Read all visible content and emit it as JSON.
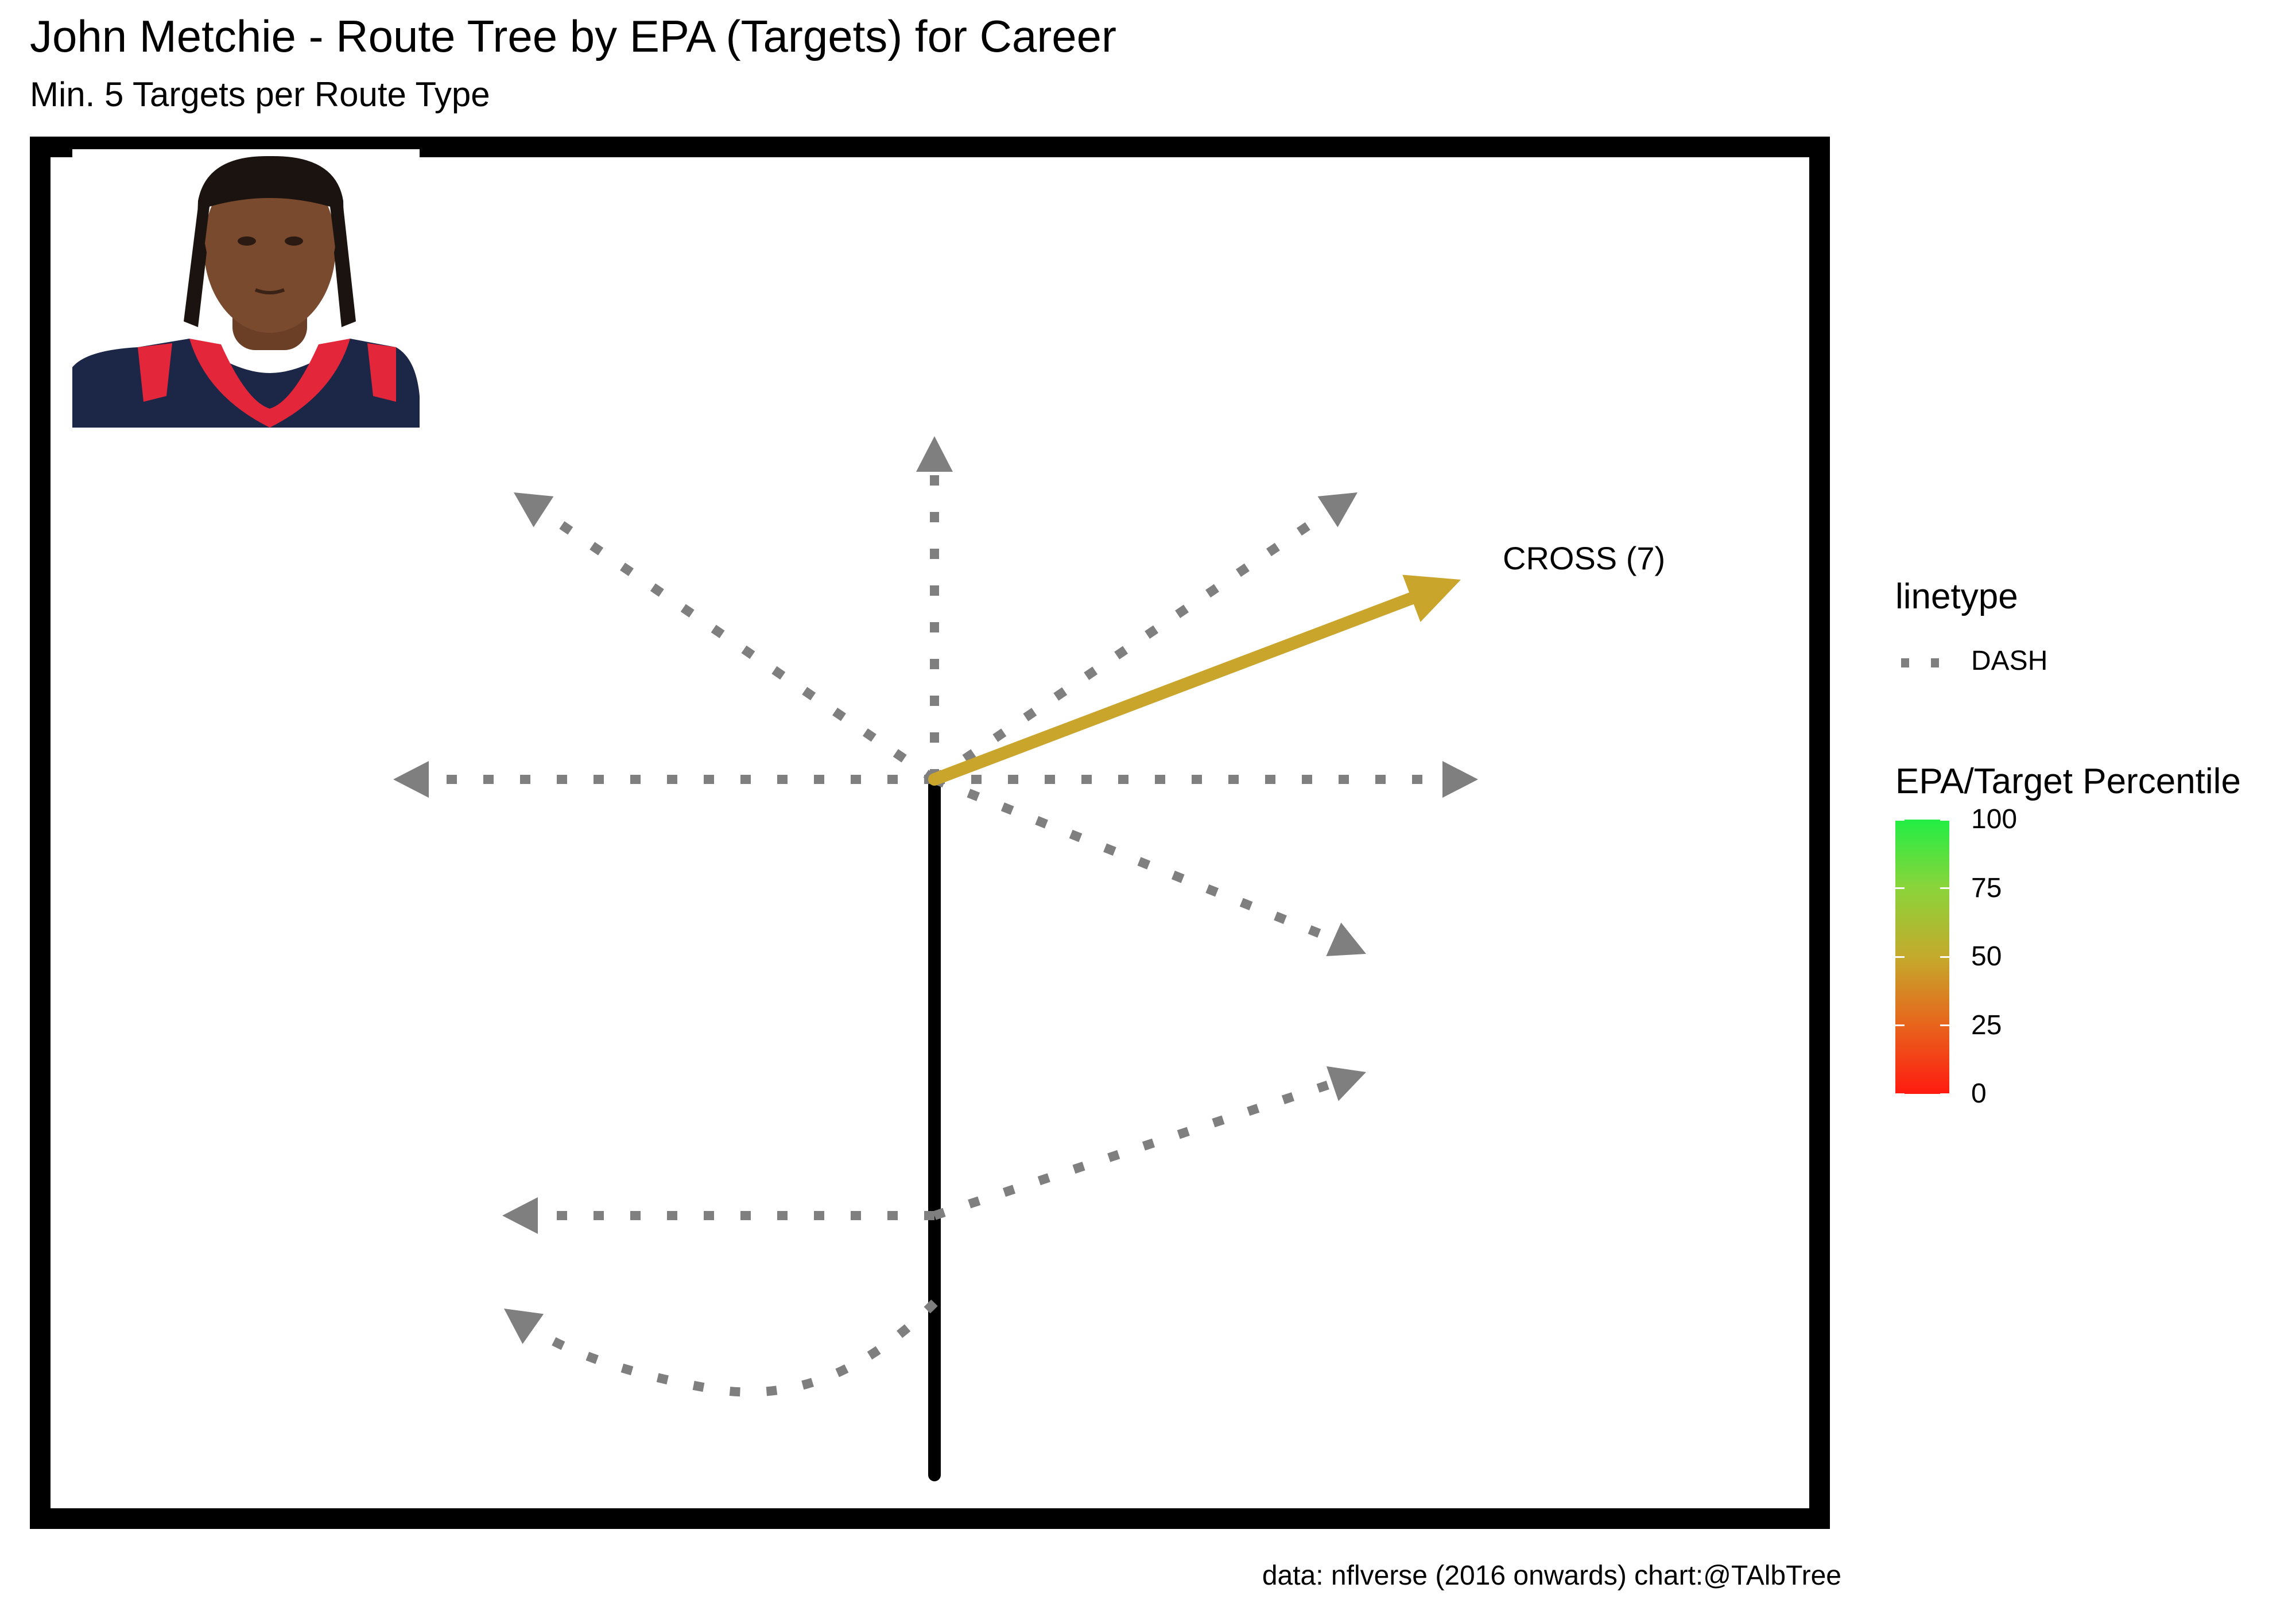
{
  "header": {
    "title": "John Metchie - Route Tree by EPA (Targets) for Career",
    "subtitle": "Min. 5 Targets per Route Type"
  },
  "caption": "data: nflverse (2016 onwards)  chart:@TAlbTree",
  "chart_data": {
    "type": "route-tree",
    "player": "John Metchie",
    "metric": "EPA (Targets)",
    "period": "Career",
    "min_targets": 5,
    "routes": [
      {
        "name": "CROSS",
        "targets": 7,
        "epa_percentile": 52,
        "linetype": "SOLID",
        "labeled": true,
        "label": "CROSS (7)"
      }
    ],
    "unqualified_routes_linetype": "DASH",
    "legend": {
      "linetype_title": "linetype",
      "linetype_entries": [
        "DASH"
      ],
      "color_title": "EPA/Target Percentile",
      "color_ticks": [
        100,
        75,
        50,
        25,
        0
      ],
      "color_range": [
        0,
        100
      ],
      "color_low": "#ff1a10",
      "color_mid": "#c4aa2c",
      "color_high": "#22ee44"
    },
    "colors": {
      "stem": "#000000",
      "dash_route": "#7f7f7f",
      "cross_route": "#c9a52c"
    }
  },
  "photo": {
    "name": "player-headshot",
    "jersey_colors": [
      "#1a2444",
      "#e3263a"
    ]
  }
}
